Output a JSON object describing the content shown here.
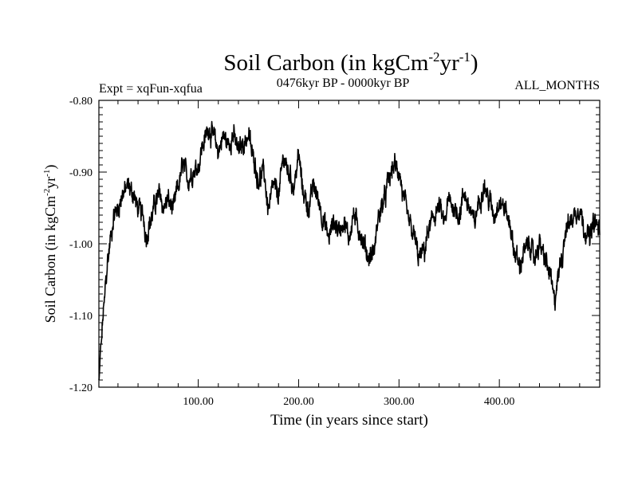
{
  "chart_data": {
    "type": "line",
    "title_main": "Soil Carbon (in kgCm",
    "title_sup1": "-2",
    "title_mid": "yr",
    "title_sup2": "-1",
    "title_end": ")",
    "left_info": "Expt = xqFun-xqfua",
    "center_info": "0476kyr BP - 0000kyr BP",
    "right_info": "ALL_MONTHS",
    "xlabel": "Time (in years since start)",
    "ylabel_main": "Soil Carbon (in kgCm",
    "ylabel_sup1": "-2",
    "ylabel_mid": "yr",
    "ylabel_sup2": "-1",
    "ylabel_end": ")",
    "xlim": [
      1,
      500
    ],
    "ylim": [
      -1.2,
      -0.8
    ],
    "x_ticks": [
      100,
      200,
      300,
      400
    ],
    "x_tick_labels": [
      "100.00",
      "200.00",
      "300.00",
      "400.00"
    ],
    "y_ticks": [
      -1.2,
      -1.1,
      -1.0,
      -0.9,
      -0.8
    ],
    "y_tick_labels": [
      "-1.20",
      "-1.10",
      "-1.00",
      "-0.90",
      "-0.80"
    ],
    "series": [
      {
        "name": "Soil Carbon",
        "color": "#000000",
        "anchors": [
          [
            1,
            -1.19
          ],
          [
            3,
            -1.14
          ],
          [
            6,
            -1.09
          ],
          [
            8,
            -1.05
          ],
          [
            10,
            -1.02
          ],
          [
            13,
            -0.99
          ],
          [
            16,
            -0.96
          ],
          [
            20,
            -0.95
          ],
          [
            25,
            -0.93
          ],
          [
            30,
            -0.92
          ],
          [
            35,
            -0.93
          ],
          [
            40,
            -0.95
          ],
          [
            45,
            -0.96
          ],
          [
            48,
            -0.99
          ],
          [
            52,
            -0.97
          ],
          [
            58,
            -0.94
          ],
          [
            62,
            -0.93
          ],
          [
            65,
            -0.95
          ],
          [
            70,
            -0.94
          ],
          [
            75,
            -0.95
          ],
          [
            80,
            -0.92
          ],
          [
            85,
            -0.89
          ],
          [
            90,
            -0.91
          ],
          [
            95,
            -0.9
          ],
          [
            100,
            -0.89
          ],
          [
            105,
            -0.86
          ],
          [
            110,
            -0.84
          ],
          [
            115,
            -0.85
          ],
          [
            120,
            -0.87
          ],
          [
            125,
            -0.85
          ],
          [
            130,
            -0.86
          ],
          [
            135,
            -0.85
          ],
          [
            140,
            -0.87
          ],
          [
            145,
            -0.86
          ],
          [
            150,
            -0.85
          ],
          [
            155,
            -0.88
          ],
          [
            160,
            -0.91
          ],
          [
            165,
            -0.9
          ],
          [
            170,
            -0.95
          ],
          [
            175,
            -0.92
          ],
          [
            180,
            -0.93
          ],
          [
            185,
            -0.88
          ],
          [
            190,
            -0.9
          ],
          [
            195,
            -0.92
          ],
          [
            200,
            -0.88
          ],
          [
            205,
            -0.93
          ],
          [
            210,
            -0.95
          ],
          [
            215,
            -0.92
          ],
          [
            220,
            -0.94
          ],
          [
            225,
            -0.97
          ],
          [
            230,
            -0.99
          ],
          [
            235,
            -0.97
          ],
          [
            240,
            -0.98
          ],
          [
            245,
            -0.97
          ],
          [
            250,
            -0.99
          ],
          [
            255,
            -0.96
          ],
          [
            260,
            -0.98
          ],
          [
            265,
            -1.0
          ],
          [
            270,
            -1.02
          ],
          [
            275,
            -1.01
          ],
          [
            280,
            -0.96
          ],
          [
            285,
            -0.94
          ],
          [
            290,
            -0.91
          ],
          [
            295,
            -0.89
          ],
          [
            300,
            -0.9
          ],
          [
            305,
            -0.94
          ],
          [
            310,
            -0.97
          ],
          [
            315,
            -0.99
          ],
          [
            320,
            -1.02
          ],
          [
            325,
            -1.01
          ],
          [
            330,
            -0.98
          ],
          [
            335,
            -0.96
          ],
          [
            340,
            -0.95
          ],
          [
            345,
            -0.97
          ],
          [
            350,
            -0.94
          ],
          [
            355,
            -0.95
          ],
          [
            360,
            -0.96
          ],
          [
            365,
            -0.93
          ],
          [
            370,
            -0.95
          ],
          [
            375,
            -0.97
          ],
          [
            380,
            -0.94
          ],
          [
            385,
            -0.92
          ],
          [
            390,
            -0.94
          ],
          [
            395,
            -0.96
          ],
          [
            400,
            -0.94
          ],
          [
            405,
            -0.95
          ],
          [
            410,
            -0.97
          ],
          [
            415,
            -1.01
          ],
          [
            420,
            -1.03
          ],
          [
            425,
            -1.01
          ],
          [
            430,
            -1.0
          ],
          [
            435,
            -1.02
          ],
          [
            440,
            -1.0
          ],
          [
            445,
            -1.02
          ],
          [
            450,
            -1.04
          ],
          [
            455,
            -1.08
          ],
          [
            458,
            -1.05
          ],
          [
            462,
            -1.02
          ],
          [
            466,
            -0.98
          ],
          [
            470,
            -0.97
          ],
          [
            475,
            -0.96
          ],
          [
            480,
            -0.95
          ],
          [
            485,
            -0.98
          ],
          [
            490,
            -0.99
          ],
          [
            495,
            -0.97
          ],
          [
            500,
            -0.98
          ]
        ]
      }
    ]
  }
}
